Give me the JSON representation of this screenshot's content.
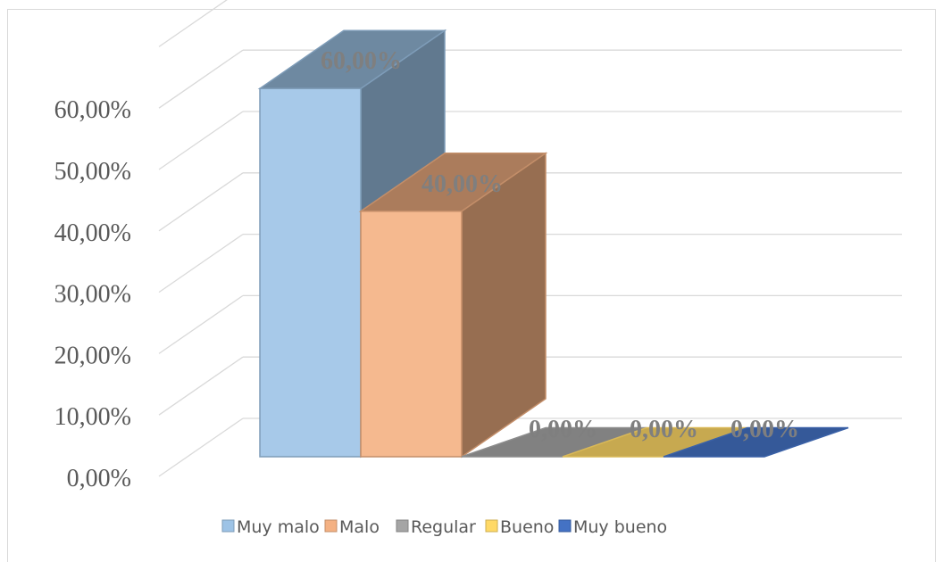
{
  "chart_data": {
    "type": "bar",
    "categories": [
      "Muy malo",
      "Malo",
      "Regular",
      "Bueno",
      "Muy bueno"
    ],
    "values": [
      0.6,
      0.4,
      0.0,
      0.0,
      0.0
    ],
    "data_labels": [
      "60,00%",
      "40,00%",
      "0,00%",
      "0,00%",
      "0,00%"
    ],
    "y_ticks": [
      "0,00%",
      "10,00%",
      "20,00%",
      "30,00%",
      "40,00%",
      "50,00%",
      "60,00%"
    ],
    "ylim": [
      0,
      0.7
    ],
    "grid": true,
    "legend_position": "bottom",
    "title": "",
    "xlabel": "",
    "ylabel": "",
    "colors": [
      "#9dc3e6",
      "#f4b183",
      "#a5a5a5",
      "#ffd966",
      "#4472c4"
    ]
  }
}
